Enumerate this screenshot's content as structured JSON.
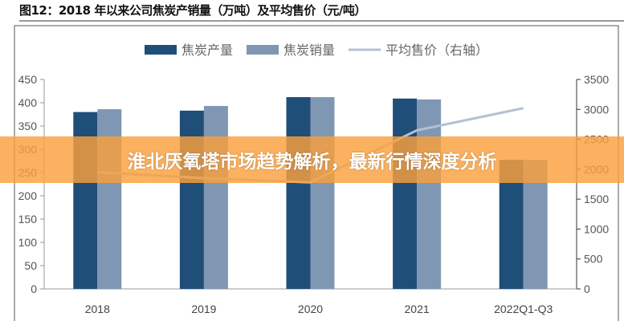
{
  "chart_data": {
    "type": "bar",
    "title": "图12：2018 年以来公司焦炭产销量（万吨）及平均售价（元/吨）",
    "categories": [
      "2018",
      "2019",
      "2020",
      "2021",
      "2022Q1-Q3"
    ],
    "series": [
      {
        "name": "焦炭产量",
        "type": "bar",
        "axis": "left",
        "color": "#1f4e79",
        "values": [
          380,
          383,
          412,
          409,
          277
        ]
      },
      {
        "name": "焦炭销量",
        "type": "bar",
        "axis": "left",
        "color": "#8097b3",
        "values": [
          386,
          393,
          412,
          407,
          277
        ]
      },
      {
        "name": "平均售价（右轴）",
        "type": "line",
        "axis": "right",
        "color": "#b4c0d4",
        "values": [
          1950,
          1850,
          1780,
          2650,
          3020
        ]
      }
    ],
    "ylim": [
      0,
      450
    ],
    "yticks": [
      "0",
      "50",
      "100",
      "150",
      "200",
      "250",
      "300",
      "350",
      "400",
      "450"
    ],
    "y2lim": [
      0,
      3500
    ],
    "y2ticks": [
      "0",
      "500",
      "1000",
      "1500",
      "2000",
      "2500",
      "3000",
      "3500"
    ],
    "legend": "top",
    "grid": false
  },
  "banner": {
    "text": "淮北厌氧塔市场趋势解析，最新行情深度分析"
  }
}
